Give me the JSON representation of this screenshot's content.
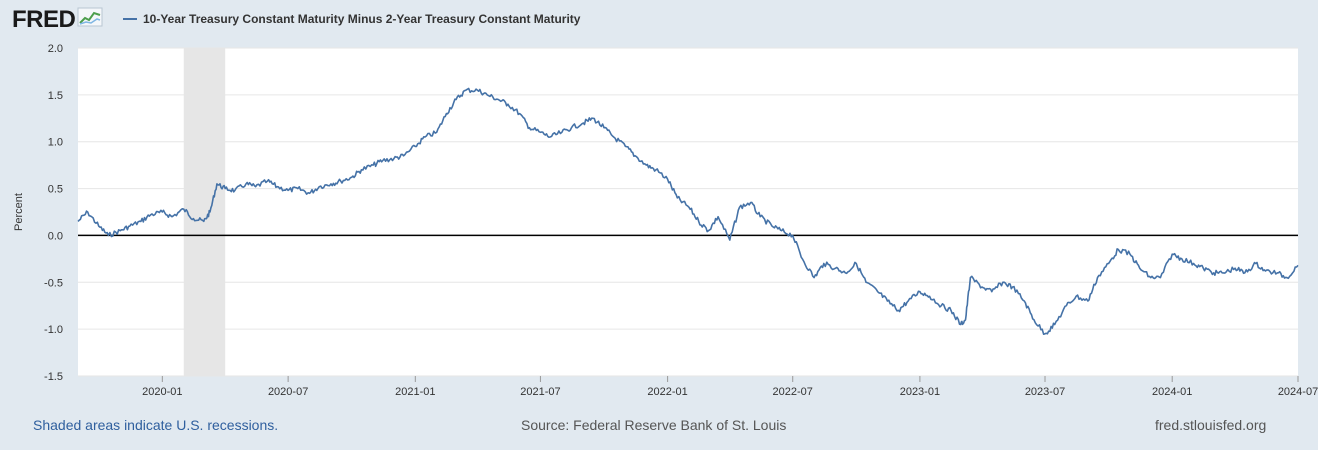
{
  "logo": {
    "text": "FRED",
    "icon": "line-chart-icon"
  },
  "footer": {
    "recession_note": "Shaded areas indicate U.S. recessions.",
    "source": "Source: Federal Reserve Bank of St. Louis",
    "site": "fred.stlouisfed.org"
  },
  "colors": {
    "series": "#4572a7",
    "zero_line": "#000000",
    "recession": "#e6e6e6",
    "grid": "#e6e6e6",
    "page_bg": "#e1e9f0",
    "plot_bg": "#ffffff"
  },
  "chart_data": {
    "type": "line",
    "title": "",
    "xlabel": "",
    "ylabel": "Percent",
    "xlim": [
      "2019-09-01",
      "2024-07-01"
    ],
    "ylim": [
      -1.5,
      2.0
    ],
    "yticks": [
      -1.5,
      -1.0,
      -0.5,
      0.0,
      0.5,
      1.0,
      1.5,
      2.0
    ],
    "ytick_labels": [
      "-1.5",
      "-1.0",
      "-0.5",
      "0.0",
      "0.5",
      "1.0",
      "1.5",
      "2.0"
    ],
    "xticks": [
      "2020-01-01",
      "2020-07-01",
      "2021-01-01",
      "2021-07-01",
      "2022-01-01",
      "2022-07-01",
      "2023-01-01",
      "2023-07-01",
      "2024-01-01",
      "2024-07-01"
    ],
    "xtick_labels": [
      "2020-01",
      "2020-07",
      "2021-01",
      "2021-07",
      "2022-01",
      "2022-07",
      "2023-01",
      "2023-07",
      "2024-01",
      "2024-07"
    ],
    "grid": "horizontal",
    "legend": "top-left",
    "recessions": [
      {
        "start": "2020-02-01",
        "end": "2020-04-01"
      }
    ],
    "series": [
      {
        "name": "10-Year Treasury Constant Maturity Minus 2-Year Treasury Constant Maturity",
        "x": [
          "2019-09-01",
          "2019-09-15",
          "2019-10-01",
          "2019-10-15",
          "2019-11-01",
          "2019-11-15",
          "2019-12-01",
          "2019-12-15",
          "2020-01-01",
          "2020-01-15",
          "2020-02-01",
          "2020-02-15",
          "2020-03-01",
          "2020-03-10",
          "2020-03-20",
          "2020-04-01",
          "2020-04-15",
          "2020-05-01",
          "2020-05-15",
          "2020-06-01",
          "2020-06-15",
          "2020-07-01",
          "2020-07-15",
          "2020-08-01",
          "2020-08-15",
          "2020-09-01",
          "2020-09-15",
          "2020-10-01",
          "2020-10-15",
          "2020-11-01",
          "2020-11-15",
          "2020-12-01",
          "2020-12-15",
          "2021-01-01",
          "2021-01-15",
          "2021-02-01",
          "2021-02-15",
          "2021-03-01",
          "2021-03-15",
          "2021-04-01",
          "2021-04-15",
          "2021-05-01",
          "2021-05-15",
          "2021-06-01",
          "2021-06-15",
          "2021-07-01",
          "2021-07-15",
          "2021-08-01",
          "2021-08-15",
          "2021-09-01",
          "2021-09-15",
          "2021-10-01",
          "2021-10-15",
          "2021-11-01",
          "2021-11-15",
          "2021-12-01",
          "2021-12-15",
          "2022-01-01",
          "2022-01-15",
          "2022-02-01",
          "2022-02-15",
          "2022-03-01",
          "2022-03-15",
          "2022-04-01",
          "2022-04-15",
          "2022-05-01",
          "2022-05-15",
          "2022-06-01",
          "2022-06-15",
          "2022-07-01",
          "2022-07-15",
          "2022-08-01",
          "2022-08-15",
          "2022-09-01",
          "2022-09-15",
          "2022-10-01",
          "2022-10-15",
          "2022-11-01",
          "2022-11-15",
          "2022-12-01",
          "2022-12-15",
          "2023-01-01",
          "2023-01-15",
          "2023-02-01",
          "2023-02-15",
          "2023-03-01",
          "2023-03-08",
          "2023-03-15",
          "2023-04-01",
          "2023-04-15",
          "2023-05-01",
          "2023-05-15",
          "2023-06-01",
          "2023-06-15",
          "2023-07-01",
          "2023-07-15",
          "2023-08-01",
          "2023-08-15",
          "2023-09-01",
          "2023-09-15",
          "2023-10-01",
          "2023-10-15",
          "2023-11-01",
          "2023-11-15",
          "2023-12-01",
          "2023-12-15",
          "2024-01-01",
          "2024-01-15",
          "2024-02-01",
          "2024-02-15",
          "2024-03-01",
          "2024-03-15",
          "2024-04-01",
          "2024-04-15",
          "2024-05-01",
          "2024-05-15",
          "2024-06-01",
          "2024-06-15",
          "2024-07-01"
        ],
        "y": [
          0.15,
          0.25,
          0.1,
          0.0,
          0.05,
          0.1,
          0.15,
          0.22,
          0.25,
          0.2,
          0.28,
          0.18,
          0.15,
          0.25,
          0.55,
          0.5,
          0.48,
          0.55,
          0.52,
          0.58,
          0.52,
          0.48,
          0.5,
          0.45,
          0.52,
          0.55,
          0.58,
          0.62,
          0.7,
          0.75,
          0.8,
          0.82,
          0.85,
          0.95,
          1.05,
          1.1,
          1.3,
          1.45,
          1.55,
          1.55,
          1.5,
          1.45,
          1.4,
          1.3,
          1.15,
          1.1,
          1.05,
          1.1,
          1.15,
          1.2,
          1.25,
          1.15,
          1.05,
          0.95,
          0.85,
          0.75,
          0.7,
          0.6,
          0.4,
          0.3,
          0.15,
          0.05,
          0.2,
          -0.05,
          0.3,
          0.35,
          0.2,
          0.1,
          0.05,
          0.0,
          -0.25,
          -0.45,
          -0.3,
          -0.35,
          -0.4,
          -0.3,
          -0.5,
          -0.6,
          -0.7,
          -0.8,
          -0.7,
          -0.6,
          -0.65,
          -0.75,
          -0.8,
          -0.95,
          -0.9,
          -0.45,
          -0.55,
          -0.6,
          -0.5,
          -0.55,
          -0.7,
          -0.9,
          -1.05,
          -0.95,
          -0.75,
          -0.65,
          -0.7,
          -0.45,
          -0.3,
          -0.15,
          -0.2,
          -0.35,
          -0.45,
          -0.45,
          -0.2,
          -0.25,
          -0.3,
          -0.35,
          -0.4,
          -0.4,
          -0.35,
          -0.4,
          -0.3,
          -0.38,
          -0.4,
          -0.45,
          -0.32
        ]
      }
    ]
  }
}
